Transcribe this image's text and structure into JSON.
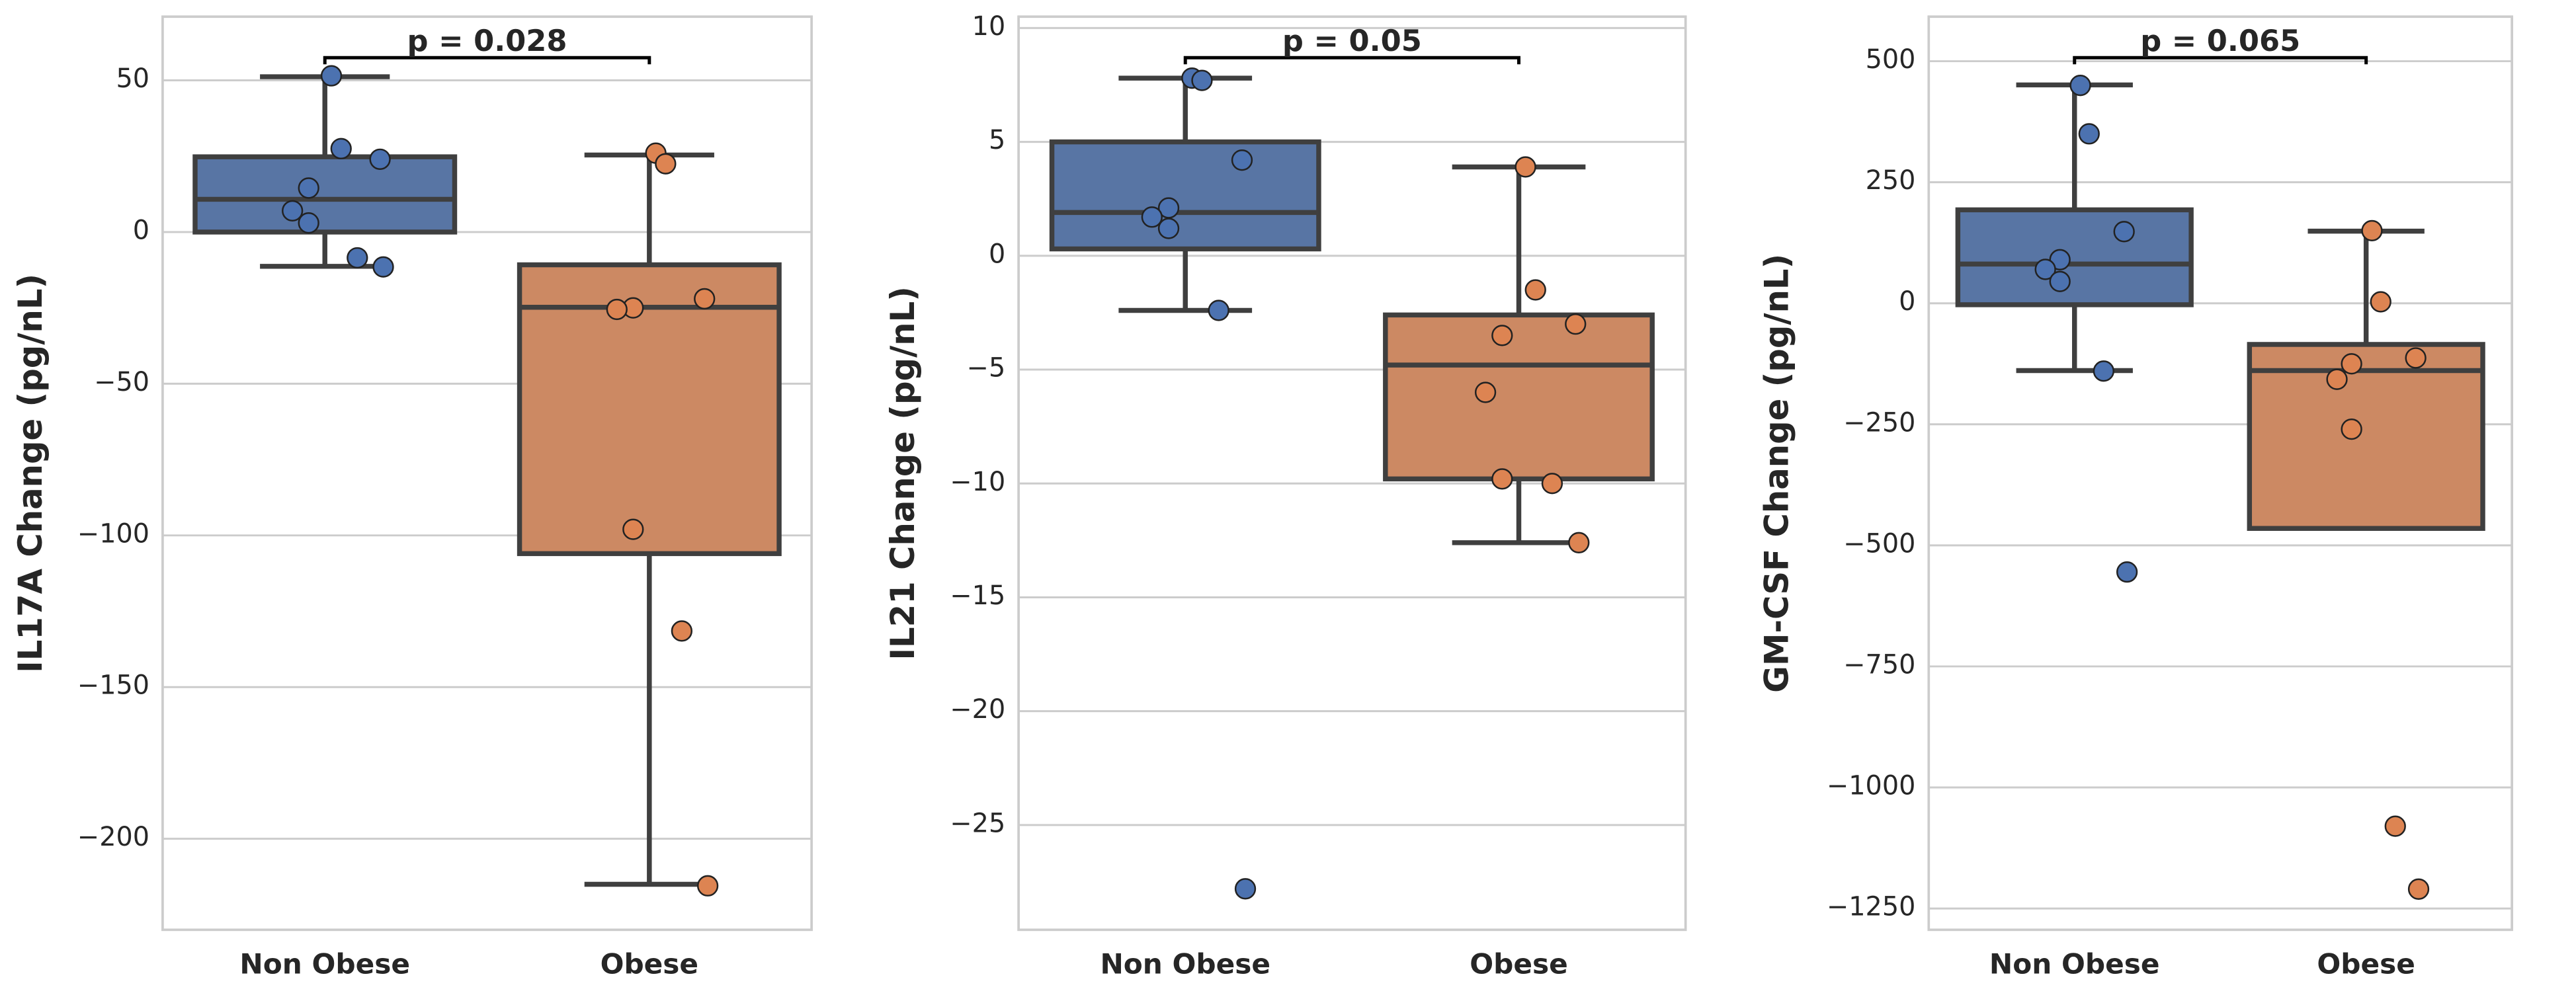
{
  "chart_data": [
    {
      "type": "box",
      "ylabel": "IL17A Change (pg/nL)",
      "categories": [
        "Non Obese",
        "Obese"
      ],
      "ylim": [
        -230,
        71
      ],
      "yticks": [
        50,
        0,
        {
          "value": -50,
          "label": "−50"
        },
        {
          "value": -100,
          "label": "−100"
        },
        {
          "value": -150,
          "label": "−150"
        },
        {
          "value": -200,
          "label": "−200"
        }
      ],
      "grid": true,
      "annotation": "p = 0.028",
      "boxes": [
        {
          "color": "#4c72b0",
          "box_color": "#5875a4",
          "whislo": -11.3,
          "q1": 0,
          "med": 10.8,
          "q3": 24.8,
          "whishi": 51.2,
          "points": [
            51.5,
            27.5,
            24,
            14.5,
            7,
            3,
            -8.5,
            -11.5
          ]
        },
        {
          "color": "#dd8452",
          "box_color": "#cc8963",
          "whislo": -215,
          "q1": -106,
          "med": -24.8,
          "q3": -10.8,
          "whishi": 25.4,
          "points": [
            26,
            22.5,
            -22,
            -25,
            -25.5,
            -98,
            -131.5,
            -215.5
          ]
        }
      ]
    },
    {
      "type": "box",
      "ylabel": "IL21 Change (pg/nL)",
      "categories": [
        "Non Obese",
        "Obese"
      ],
      "ylim": [
        -29.6,
        10.5
      ],
      "yticks": [
        10,
        5,
        0,
        {
          "value": -5,
          "label": "−5"
        },
        {
          "value": -10,
          "label": "−10"
        },
        {
          "value": -15,
          "label": "−15"
        },
        {
          "value": -20,
          "label": "−20"
        },
        {
          "value": -25,
          "label": "−25"
        }
      ],
      "grid": true,
      "annotation": "p = 0.05",
      "boxes": [
        {
          "color": "#4c72b0",
          "box_color": "#5875a4",
          "whislo": -2.4,
          "q1": 0.3,
          "med": 1.9,
          "q3": 5.0,
          "whishi": 7.8,
          "points": [
            7.8,
            7.7,
            4.2,
            2.1,
            1.7,
            1.2,
            -2.4,
            -27.8
          ]
        },
        {
          "color": "#dd8452",
          "box_color": "#cc8963",
          "whislo": -12.6,
          "q1": -9.8,
          "med": -4.8,
          "q3": -2.6,
          "whishi": 3.9,
          "points": [
            3.9,
            -1.5,
            -3.0,
            -3.5,
            -6.0,
            -9.8,
            -10.0,
            -12.6
          ]
        }
      ]
    },
    {
      "type": "box",
      "ylabel": "GM-CSF Change (pg/nL)",
      "categories": [
        "Non Obese",
        "Obese"
      ],
      "ylim": [
        -1294,
        592
      ],
      "yticks": [
        500,
        250,
        0,
        {
          "value": -250,
          "label": "−250"
        },
        {
          "value": -500,
          "label": "−500"
        },
        {
          "value": -750,
          "label": "−750"
        },
        {
          "value": -1000,
          "label": "−1000"
        },
        {
          "value": -1250,
          "label": "−1250"
        }
      ],
      "grid": true,
      "annotation": "p = 0.065",
      "boxes": [
        {
          "color": "#4c72b0",
          "box_color": "#5875a4",
          "whislo": -139,
          "q1": -3,
          "med": 81,
          "q3": 193,
          "whishi": 451,
          "points": [
            450,
            350,
            148,
            90,
            70,
            45,
            -140,
            -555
          ]
        },
        {
          "color": "#dd8452",
          "box_color": "#cc8963",
          "whislo": -465,
          "q1": -465,
          "med": -139,
          "q3": -85,
          "whishi": 149,
          "points": [
            150,
            3,
            -113,
            -125,
            -157,
            -260,
            -1080,
            -1210
          ]
        }
      ]
    }
  ]
}
